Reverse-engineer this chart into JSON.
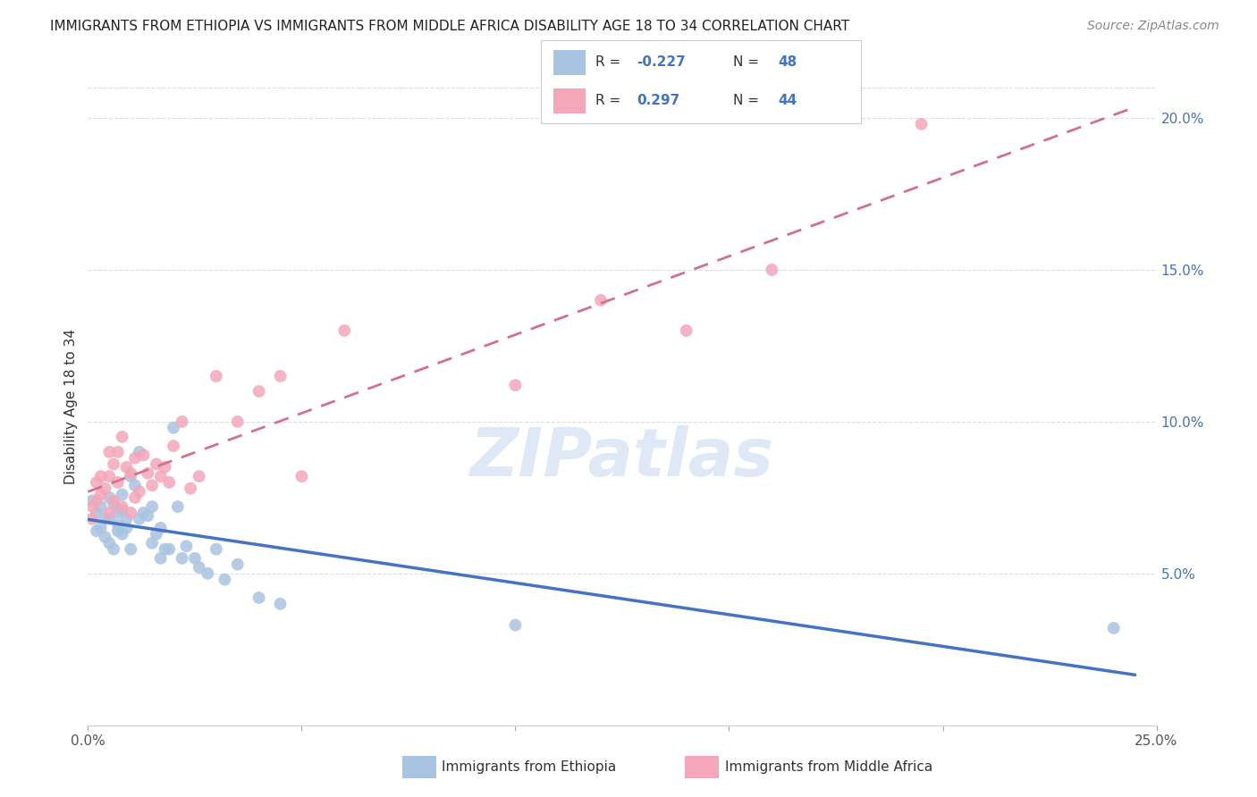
{
  "title": "IMMIGRANTS FROM ETHIOPIA VS IMMIGRANTS FROM MIDDLE AFRICA DISABILITY AGE 18 TO 34 CORRELATION CHART",
  "source": "Source: ZipAtlas.com",
  "ylabel": "Disability Age 18 to 34",
  "xlim": [
    0.0,
    0.25
  ],
  "ylim": [
    0.0,
    0.21
  ],
  "xtick_vals": [
    0.0,
    0.05,
    0.1,
    0.15,
    0.2,
    0.25
  ],
  "ytick_vals": [
    0.05,
    0.1,
    0.15,
    0.2
  ],
  "xticklabels": [
    "0.0%",
    "",
    "",
    "",
    "",
    "25.0%"
  ],
  "yticklabels_right": [
    "5.0%",
    "10.0%",
    "15.0%",
    "20.0%"
  ],
  "legend_label1": "Immigrants from Ethiopia",
  "legend_label2": "Immigrants from Middle Africa",
  "R1": "-0.227",
  "N1": "48",
  "R2": "0.297",
  "N2": "44",
  "color_blue": "#a8c4e0",
  "color_pink": "#f4a7b9",
  "color_blue_line": "#4472c4",
  "color_pink_line": "#d4718a",
  "color_blue_text": "#4472c4",
  "watermark": "ZIPatlas",
  "ethiopia_x": [
    0.001,
    0.002,
    0.002,
    0.003,
    0.003,
    0.004,
    0.004,
    0.005,
    0.005,
    0.005,
    0.006,
    0.006,
    0.007,
    0.007,
    0.007,
    0.008,
    0.008,
    0.008,
    0.009,
    0.009,
    0.01,
    0.01,
    0.011,
    0.012,
    0.012,
    0.013,
    0.014,
    0.015,
    0.015,
    0.016,
    0.017,
    0.017,
    0.018,
    0.019,
    0.02,
    0.021,
    0.022,
    0.023,
    0.025,
    0.026,
    0.028,
    0.03,
    0.032,
    0.035,
    0.04,
    0.045,
    0.1,
    0.24
  ],
  "ethiopia_y": [
    0.074,
    0.07,
    0.064,
    0.072,
    0.065,
    0.068,
    0.062,
    0.075,
    0.068,
    0.06,
    0.073,
    0.058,
    0.064,
    0.07,
    0.066,
    0.076,
    0.071,
    0.063,
    0.068,
    0.065,
    0.082,
    0.058,
    0.079,
    0.09,
    0.068,
    0.07,
    0.069,
    0.072,
    0.06,
    0.063,
    0.055,
    0.065,
    0.058,
    0.058,
    0.098,
    0.072,
    0.055,
    0.059,
    0.055,
    0.052,
    0.05,
    0.058,
    0.048,
    0.053,
    0.042,
    0.04,
    0.033,
    0.032
  ],
  "middle_africa_x": [
    0.001,
    0.001,
    0.002,
    0.002,
    0.003,
    0.003,
    0.004,
    0.005,
    0.005,
    0.005,
    0.006,
    0.006,
    0.007,
    0.007,
    0.008,
    0.008,
    0.009,
    0.01,
    0.01,
    0.011,
    0.011,
    0.012,
    0.013,
    0.014,
    0.015,
    0.016,
    0.017,
    0.018,
    0.019,
    0.02,
    0.022,
    0.024,
    0.026,
    0.03,
    0.035,
    0.04,
    0.045,
    0.05,
    0.06,
    0.1,
    0.12,
    0.14,
    0.16,
    0.195
  ],
  "middle_africa_y": [
    0.072,
    0.068,
    0.08,
    0.074,
    0.082,
    0.076,
    0.078,
    0.09,
    0.082,
    0.07,
    0.086,
    0.074,
    0.09,
    0.08,
    0.095,
    0.072,
    0.085,
    0.083,
    0.07,
    0.088,
    0.075,
    0.077,
    0.089,
    0.083,
    0.079,
    0.086,
    0.082,
    0.085,
    0.08,
    0.092,
    0.1,
    0.078,
    0.082,
    0.115,
    0.1,
    0.11,
    0.115,
    0.082,
    0.13,
    0.112,
    0.14,
    0.13,
    0.15,
    0.198
  ]
}
